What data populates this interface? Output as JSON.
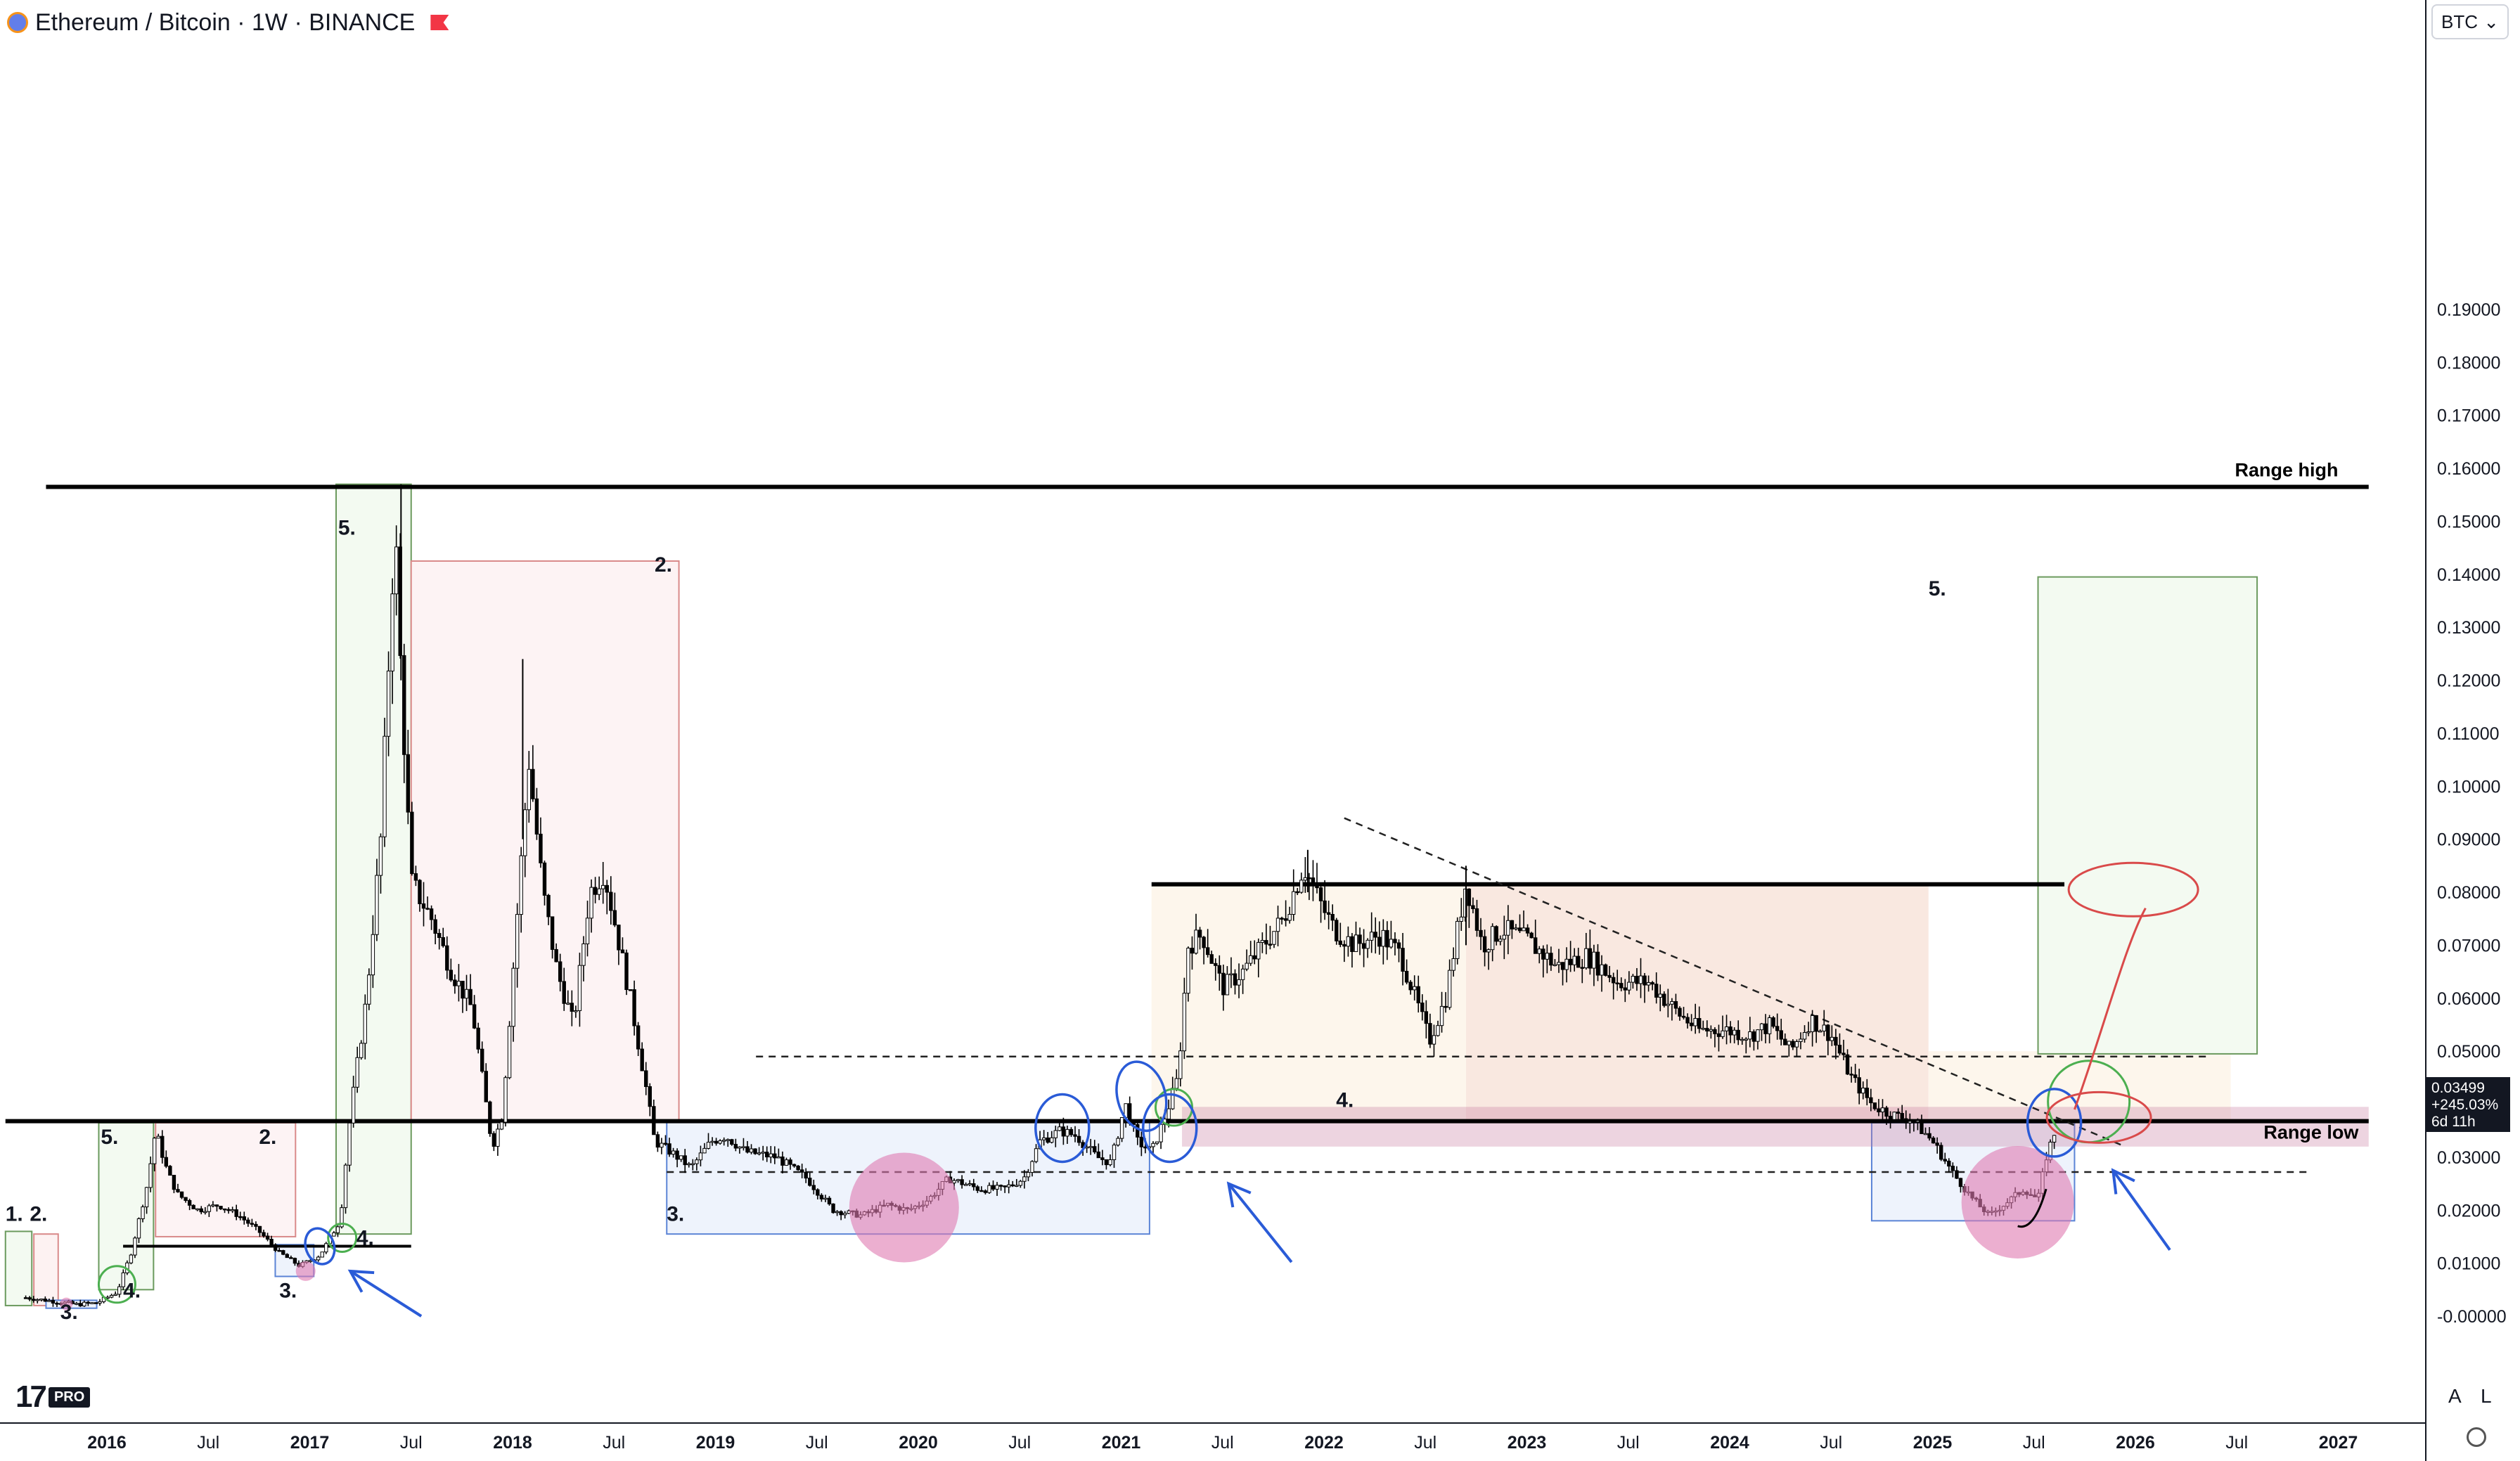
{
  "header": {
    "title": "Ethereum / Bitcoin · 1W · BINANCE"
  },
  "currency_selector": {
    "value": "BTC"
  },
  "price_tag": {
    "price": "0.03499",
    "change": "+245.03%",
    "countdown": "6d 11h"
  },
  "scale_buttons": {
    "auto": "A",
    "log": "L"
  },
  "branding": {
    "logo_text": "17",
    "pro_label": "PRO"
  },
  "colors": {
    "candle": "#000000",
    "range_line": "#000000",
    "green_box": "#6b9a5e",
    "red_box": "#d98a8a",
    "blue_box": "#5b84d6",
    "pink_zone": "#c77aa0",
    "blue_marker": "#2a5bd7",
    "pink_dot": "#e07ab0",
    "green_circle": "#4caf50",
    "red_circle": "#d94a4a"
  },
  "chart_data": {
    "type": "candlestick",
    "symbol": "Ethereum / Bitcoin",
    "interval": "1W",
    "exchange": "BINANCE",
    "y_axis": {
      "ticks": [
        "0.19000",
        "0.18000",
        "0.17000",
        "0.16000",
        "0.15000",
        "0.14000",
        "0.13000",
        "0.12000",
        "0.11000",
        "0.10000",
        "0.09000",
        "0.08000",
        "0.07000",
        "0.06000",
        "0.05000",
        "0.04000",
        "0.03000",
        "0.02000",
        "0.01000",
        "-0.00000"
      ],
      "range": [
        -0.003,
        0.2
      ]
    },
    "x_axis": {
      "ticks": [
        "2016",
        "Jul",
        "2017",
        "Jul",
        "2018",
        "Jul",
        "2019",
        "Jul",
        "2020",
        "Jul",
        "2021",
        "Jul",
        "2022",
        "Jul",
        "2023",
        "Jul",
        "2024",
        "Jul",
        "2025",
        "Jul",
        "2026",
        "Jul",
        "2027"
      ],
      "range": [
        2015.5,
        2027.4
      ]
    },
    "price_path": [
      [
        2015.6,
        0.0035
      ],
      [
        2015.7,
        0.003
      ],
      [
        2015.85,
        0.0022
      ],
      [
        2015.95,
        0.0025
      ],
      [
        2016.05,
        0.0045
      ],
      [
        2016.12,
        0.012
      ],
      [
        2016.2,
        0.025
      ],
      [
        2016.24,
        0.035
      ],
      [
        2016.3,
        0.027
      ],
      [
        2016.35,
        0.023
      ],
      [
        2016.45,
        0.02
      ],
      [
        2016.55,
        0.021
      ],
      [
        2016.65,
        0.019
      ],
      [
        2016.75,
        0.016
      ],
      [
        2016.85,
        0.012
      ],
      [
        2016.95,
        0.0095
      ],
      [
        2017.05,
        0.0115
      ],
      [
        2017.15,
        0.018
      ],
      [
        2017.2,
        0.038
      ],
      [
        2017.28,
        0.06
      ],
      [
        2017.35,
        0.09
      ],
      [
        2017.42,
        0.15
      ],
      [
        2017.45,
        0.12
      ],
      [
        2017.5,
        0.082
      ],
      [
        2017.6,
        0.075
      ],
      [
        2017.7,
        0.065
      ],
      [
        2017.8,
        0.058
      ],
      [
        2017.85,
        0.045
      ],
      [
        2017.9,
        0.032
      ],
      [
        2017.95,
        0.038
      ],
      [
        2018.05,
        0.09
      ],
      [
        2018.08,
        0.105
      ],
      [
        2018.15,
        0.08
      ],
      [
        2018.22,
        0.065
      ],
      [
        2018.3,
        0.055
      ],
      [
        2018.38,
        0.08
      ],
      [
        2018.45,
        0.084
      ],
      [
        2018.5,
        0.075
      ],
      [
        2018.58,
        0.06
      ],
      [
        2018.65,
        0.045
      ],
      [
        2018.7,
        0.033
      ],
      [
        2018.78,
        0.031
      ],
      [
        2018.88,
        0.028
      ],
      [
        2018.98,
        0.033
      ],
      [
        2019.05,
        0.034
      ],
      [
        2019.15,
        0.031
      ],
      [
        2019.3,
        0.03
      ],
      [
        2019.45,
        0.026
      ],
      [
        2019.58,
        0.02
      ],
      [
        2019.72,
        0.019
      ],
      [
        2019.85,
        0.021
      ],
      [
        2019.95,
        0.02
      ],
      [
        2020.05,
        0.022
      ],
      [
        2020.15,
        0.026
      ],
      [
        2020.3,
        0.024
      ],
      [
        2020.42,
        0.024
      ],
      [
        2020.52,
        0.026
      ],
      [
        2020.6,
        0.033
      ],
      [
        2020.7,
        0.035
      ],
      [
        2020.78,
        0.034
      ],
      [
        2020.88,
        0.03
      ],
      [
        2020.95,
        0.029
      ],
      [
        2021.02,
        0.04
      ],
      [
        2021.08,
        0.033
      ],
      [
        2021.15,
        0.031
      ],
      [
        2021.22,
        0.038
      ],
      [
        2021.28,
        0.045
      ],
      [
        2021.33,
        0.07
      ],
      [
        2021.4,
        0.072
      ],
      [
        2021.5,
        0.062
      ],
      [
        2021.6,
        0.065
      ],
      [
        2021.7,
        0.07
      ],
      [
        2021.8,
        0.075
      ],
      [
        2021.9,
        0.085
      ],
      [
        2021.98,
        0.078
      ],
      [
        2022.05,
        0.073
      ],
      [
        2022.15,
        0.07
      ],
      [
        2022.28,
        0.072
      ],
      [
        2022.38,
        0.068
      ],
      [
        2022.45,
        0.06
      ],
      [
        2022.52,
        0.052
      ],
      [
        2022.6,
        0.06
      ],
      [
        2022.7,
        0.082
      ],
      [
        2022.78,
        0.07
      ],
      [
        2022.88,
        0.073
      ],
      [
        2023.0,
        0.071
      ],
      [
        2023.15,
        0.066
      ],
      [
        2023.3,
        0.068
      ],
      [
        2023.45,
        0.063
      ],
      [
        2023.6,
        0.063
      ],
      [
        2023.75,
        0.057
      ],
      [
        2023.85,
        0.054
      ],
      [
        2023.98,
        0.054
      ],
      [
        2024.1,
        0.053
      ],
      [
        2024.2,
        0.055
      ],
      [
        2024.3,
        0.05
      ],
      [
        2024.4,
        0.056
      ],
      [
        2024.5,
        0.053
      ],
      [
        2024.6,
        0.045
      ],
      [
        2024.7,
        0.04
      ],
      [
        2024.8,
        0.038
      ],
      [
        2024.9,
        0.037
      ],
      [
        2025.0,
        0.033
      ],
      [
        2025.1,
        0.027
      ],
      [
        2025.2,
        0.022
      ],
      [
        2025.28,
        0.019
      ],
      [
        2025.35,
        0.021
      ],
      [
        2025.45,
        0.024
      ],
      [
        2025.52,
        0.022
      ],
      [
        2025.56,
        0.03
      ],
      [
        2025.6,
        0.0345
      ]
    ],
    "levels": [
      {
        "label": "Range high",
        "price": 0.1565,
        "from": 2015.7,
        "to": 2027.15
      },
      {
        "label": "Range low",
        "price": 0.0368,
        "from": 2015.5,
        "to": 2027.15
      },
      {
        "label": "",
        "price": 0.0815,
        "from": 2021.15,
        "to": 2025.65
      }
    ],
    "annotations": {
      "phase_labels": [
        "1.",
        "2.",
        "3.",
        "4.",
        "5.",
        "2.",
        "3.",
        "4.",
        "5.",
        "2.",
        "3.",
        "4.",
        "5."
      ],
      "range_low_label": "Range low",
      "range_high_label": "Range high"
    },
    "legend": "none",
    "grid": false
  }
}
